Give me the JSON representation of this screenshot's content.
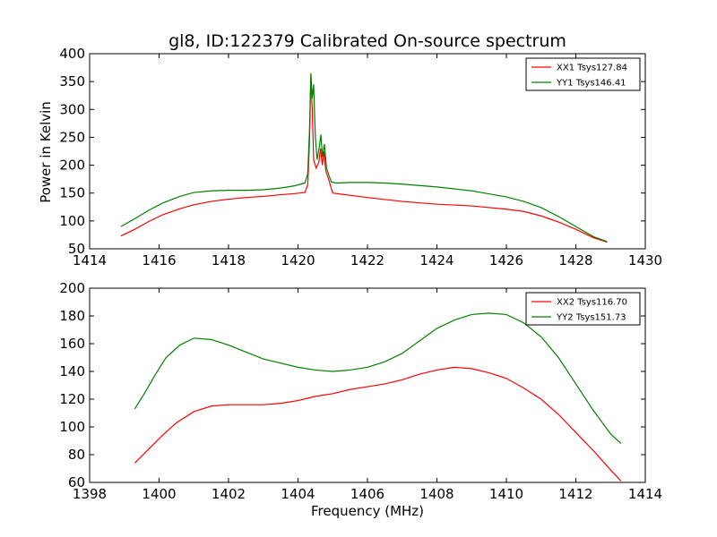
{
  "title": "gl8, ID:122379 Calibrated On-source spectrum",
  "ylabel": "Power in Kelvin",
  "xlabel": "Frequency (MHz)",
  "colors": {
    "red": "#ff0000",
    "green": "#008000"
  },
  "chart_data": [
    {
      "type": "line",
      "xlim": [
        1414,
        1430
      ],
      "ylim": [
        50,
        400
      ],
      "xticks": [
        1414,
        1416,
        1418,
        1420,
        1422,
        1424,
        1426,
        1428,
        1430
      ],
      "yticks": [
        50,
        100,
        150,
        200,
        250,
        300,
        350,
        400
      ],
      "legend": "top-right",
      "series": [
        {
          "name": "XX1 Tsys127.84",
          "color": "#ff0000",
          "points": [
            [
              1414.9,
              73
            ],
            [
              1415.3,
              85
            ],
            [
              1415.7,
              99
            ],
            [
              1416.1,
              111
            ],
            [
              1416.6,
              122
            ],
            [
              1417.0,
              129
            ],
            [
              1417.5,
              135
            ],
            [
              1418.0,
              139
            ],
            [
              1418.5,
              142
            ],
            [
              1419.0,
              144
            ],
            [
              1419.5,
              147
            ],
            [
              1419.9,
              149
            ],
            [
              1420.2,
              151
            ],
            [
              1420.28,
              165
            ],
            [
              1420.33,
              240
            ],
            [
              1420.37,
              360
            ],
            [
              1420.41,
              300
            ],
            [
              1420.45,
              210
            ],
            [
              1420.52,
              195
            ],
            [
              1420.6,
              205
            ],
            [
              1420.65,
              230
            ],
            [
              1420.7,
              200
            ],
            [
              1420.75,
              225
            ],
            [
              1420.8,
              190
            ],
            [
              1420.88,
              175
            ],
            [
              1420.95,
              160
            ],
            [
              1421.0,
              150
            ],
            [
              1421.5,
              146
            ],
            [
              1422.0,
              142
            ],
            [
              1423.0,
              135
            ],
            [
              1424.0,
              130
            ],
            [
              1425.0,
              127
            ],
            [
              1426.0,
              121
            ],
            [
              1426.5,
              117
            ],
            [
              1427.0,
              109
            ],
            [
              1427.5,
              98
            ],
            [
              1428.0,
              85
            ],
            [
              1428.5,
              70
            ],
            [
              1428.9,
              62
            ]
          ]
        },
        {
          "name": "YY1 Tsys146.41",
          "color": "#008000",
          "points": [
            [
              1414.9,
              90
            ],
            [
              1415.3,
              104
            ],
            [
              1415.7,
              119
            ],
            [
              1416.1,
              132
            ],
            [
              1416.6,
              144
            ],
            [
              1417.0,
              151
            ],
            [
              1417.5,
              154
            ],
            [
              1418.0,
              155
            ],
            [
              1418.5,
              155
            ],
            [
              1419.0,
              156
            ],
            [
              1419.5,
              159
            ],
            [
              1419.9,
              163
            ],
            [
              1420.2,
              168
            ],
            [
              1420.28,
              185
            ],
            [
              1420.33,
              260
            ],
            [
              1420.37,
              365
            ],
            [
              1420.41,
              320
            ],
            [
              1420.45,
              345
            ],
            [
              1420.5,
              250
            ],
            [
              1420.55,
              210
            ],
            [
              1420.62,
              235
            ],
            [
              1420.66,
              255
            ],
            [
              1420.7,
              215
            ],
            [
              1420.76,
              238
            ],
            [
              1420.82,
              195
            ],
            [
              1420.9,
              180
            ],
            [
              1420.96,
              170
            ],
            [
              1421.1,
              168
            ],
            [
              1421.5,
              169
            ],
            [
              1422.0,
              169
            ],
            [
              1422.5,
              168
            ],
            [
              1423.0,
              166
            ],
            [
              1424.0,
              161
            ],
            [
              1425.0,
              154
            ],
            [
              1426.0,
              143
            ],
            [
              1426.5,
              135
            ],
            [
              1427.0,
              124
            ],
            [
              1427.5,
              108
            ],
            [
              1428.0,
              90
            ],
            [
              1428.5,
              72
            ],
            [
              1428.9,
              63
            ]
          ]
        }
      ]
    },
    {
      "type": "line",
      "xlim": [
        1398,
        1414
      ],
      "ylim": [
        60,
        200
      ],
      "xticks": [
        1398,
        1400,
        1402,
        1404,
        1406,
        1408,
        1410,
        1412,
        1414
      ],
      "yticks": [
        60,
        80,
        100,
        120,
        140,
        160,
        180,
        200
      ],
      "legend": "top-right",
      "series": [
        {
          "name": "XX2 Tsys116.70",
          "color": "#ff0000",
          "points": [
            [
              1399.3,
              74
            ],
            [
              1399.7,
              84
            ],
            [
              1400.1,
              94
            ],
            [
              1400.5,
              103
            ],
            [
              1401.0,
              111
            ],
            [
              1401.5,
              115
            ],
            [
              1402.0,
              116
            ],
            [
              1402.5,
              116
            ],
            [
              1403.0,
              116
            ],
            [
              1403.5,
              117
            ],
            [
              1404.0,
              119
            ],
            [
              1404.5,
              122
            ],
            [
              1405.0,
              124
            ],
            [
              1405.5,
              127
            ],
            [
              1406.0,
              129
            ],
            [
              1406.5,
              131
            ],
            [
              1407.0,
              134
            ],
            [
              1407.5,
              138
            ],
            [
              1408.0,
              141
            ],
            [
              1408.5,
              143
            ],
            [
              1409.0,
              142
            ],
            [
              1409.5,
              139
            ],
            [
              1410.0,
              135
            ],
            [
              1410.5,
              128
            ],
            [
              1411.0,
              120
            ],
            [
              1411.5,
              109
            ],
            [
              1412.0,
              96
            ],
            [
              1412.5,
              83
            ],
            [
              1413.0,
              69
            ],
            [
              1413.3,
              61
            ]
          ]
        },
        {
          "name": "YY2 Tsys151.73",
          "color": "#008000",
          "points": [
            [
              1399.3,
              113
            ],
            [
              1399.6,
              125
            ],
            [
              1399.9,
              138
            ],
            [
              1400.2,
              150
            ],
            [
              1400.6,
              159
            ],
            [
              1401.0,
              164
            ],
            [
              1401.5,
              163
            ],
            [
              1402.0,
              159
            ],
            [
              1402.5,
              154
            ],
            [
              1403.0,
              149
            ],
            [
              1403.5,
              146
            ],
            [
              1404.0,
              143
            ],
            [
              1404.5,
              141
            ],
            [
              1405.0,
              140
            ],
            [
              1405.5,
              141
            ],
            [
              1406.0,
              143
            ],
            [
              1406.5,
              147
            ],
            [
              1407.0,
              153
            ],
            [
              1407.5,
              162
            ],
            [
              1408.0,
              171
            ],
            [
              1408.5,
              177
            ],
            [
              1409.0,
              181
            ],
            [
              1409.5,
              182
            ],
            [
              1410.0,
              181
            ],
            [
              1410.5,
              175
            ],
            [
              1411.0,
              165
            ],
            [
              1411.5,
              150
            ],
            [
              1412.0,
              131
            ],
            [
              1412.5,
              112
            ],
            [
              1413.0,
              95
            ],
            [
              1413.3,
              88
            ]
          ]
        }
      ]
    }
  ]
}
